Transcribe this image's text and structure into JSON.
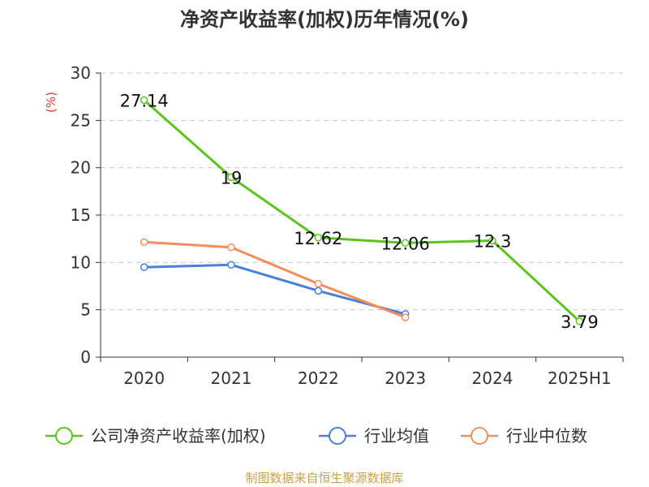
{
  "chart_data": {
    "type": "line",
    "title": "净资产收益率(加权)历年情况(%)",
    "ylabel": "(%)",
    "xlabel": "",
    "categories": [
      "2020",
      "2021",
      "2022",
      "2023",
      "2024",
      "2025H1"
    ],
    "ylim": [
      0,
      30
    ],
    "yticks": [
      0,
      5,
      10,
      15,
      20,
      25,
      30
    ],
    "grid": true,
    "legend_position": "bottom",
    "series": [
      {
        "name": "公司净资产收益率(加权)",
        "color": "#5cc320",
        "values": [
          27.14,
          19,
          12.62,
          12.06,
          12.3,
          3.79
        ],
        "labels": [
          "27.14",
          "19",
          "12.62",
          "12.06",
          "12.3",
          "3.79"
        ]
      },
      {
        "name": "行业均值",
        "color": "#4a7fd9",
        "values": [
          9.5,
          9.75,
          7.0,
          4.55,
          null,
          null
        ]
      },
      {
        "name": "行业中位数",
        "color": "#f58d5b",
        "values": [
          12.15,
          11.6,
          7.75,
          4.2,
          null,
          null
        ]
      }
    ]
  },
  "footer": "制图数据来自恒生聚源数据库"
}
